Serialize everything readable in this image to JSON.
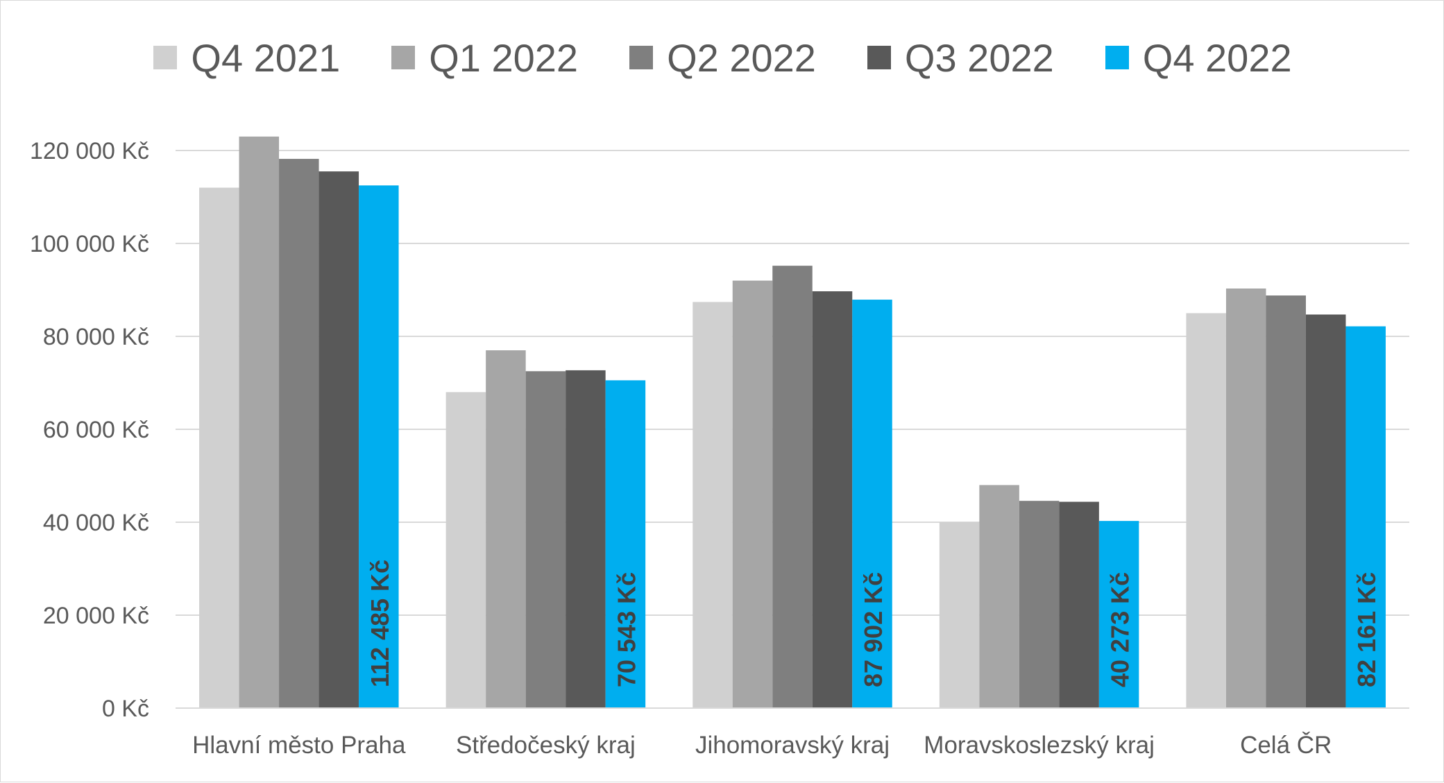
{
  "chart_data": {
    "type": "bar",
    "title": "",
    "xlabel": "",
    "ylabel": "",
    "ylim": [
      0,
      130000
    ],
    "yticks": [
      0,
      20000,
      40000,
      60000,
      80000,
      100000,
      120000
    ],
    "ytick_labels": [
      "0 Kč",
      "20 000 Kč",
      "40 000 Kč",
      "60 000 Kč",
      "80 000 Kč",
      "100 000 Kč",
      "120 000 Kč"
    ],
    "grid": true,
    "legend_position": "top",
    "categories": [
      "Hlavní město Praha",
      "Středočeský kraj",
      "Jihomoravský kraj",
      "Moravskoslezský kraj",
      "Celá ČR"
    ],
    "series": [
      {
        "name": "Q4 2021",
        "color": "#d0d0d0",
        "values": [
          112000,
          68000,
          87400,
          40000,
          85000
        ]
      },
      {
        "name": "Q1 2022",
        "color": "#a6a6a6",
        "values": [
          123000,
          77000,
          92000,
          48000,
          90300
        ]
      },
      {
        "name": "Q2 2022",
        "color": "#7f7f7f",
        "values": [
          118200,
          72500,
          95200,
          44600,
          88800
        ]
      },
      {
        "name": "Q3 2022",
        "color": "#595959",
        "values": [
          115500,
          72700,
          89700,
          44400,
          84700
        ]
      },
      {
        "name": "Q4 2022",
        "color": "#00aeef",
        "values": [
          112485,
          70543,
          87902,
          40273,
          82161
        ]
      }
    ],
    "data_labels": {
      "series": "Q4 2022",
      "labels": [
        "112 485 Kč",
        "70 543 Kč",
        "87 902 Kč",
        "40 273 Kč",
        "82 161 Kč"
      ],
      "color": "#404040"
    },
    "gridline_color": "#d9d9d9",
    "axis_text_color": "#595959"
  }
}
